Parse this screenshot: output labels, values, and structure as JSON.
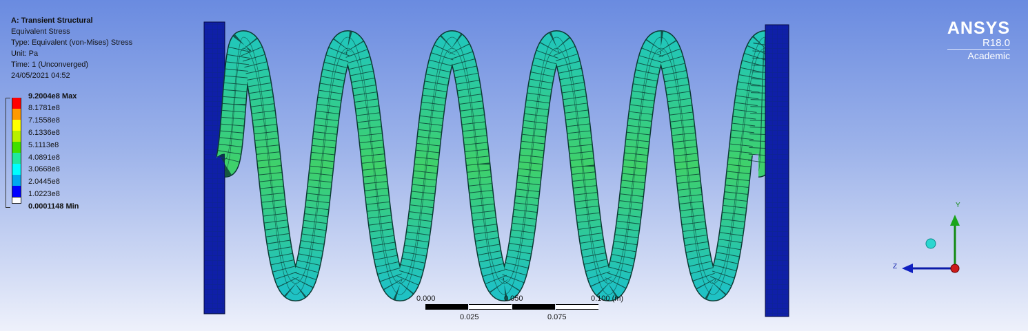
{
  "info": {
    "analysis": "A: Transient Structural",
    "result": "Equivalent Stress",
    "type": "Type: Equivalent (von-Mises) Stress",
    "unit": "Unit: Pa",
    "time": "Time: 1 (Unconverged)",
    "date": "24/05/2021 04:52"
  },
  "legend": {
    "max_label": "9.2004e8 Max",
    "min_label": "0.0001148 Min",
    "levels": [
      "8.1781e8",
      "7.1558e8",
      "6.1336e8",
      "5.1113e8",
      "4.0891e8",
      "3.0668e8",
      "2.0445e8",
      "1.0223e8"
    ],
    "colors": [
      "#ff0000",
      "#ff9900",
      "#ffff00",
      "#b8f000",
      "#40e000",
      "#20e8a0",
      "#00ffff",
      "#00a8f0",
      "#0000ff",
      "#ffffff"
    ]
  },
  "logo": {
    "name": "ANSYS",
    "version": "R18.0",
    "edition": "Academic"
  },
  "scale_bar": {
    "top_labels": [
      "0.000",
      "0.050",
      "0.100 (m)"
    ],
    "bottom_labels": [
      "0.025",
      "0.075"
    ]
  },
  "triad": {
    "y_label": "Y",
    "z_label": "Z"
  },
  "model": {
    "spring_color": "#27c9b0",
    "spring_mid_color": "#3fd16a",
    "plate_color": "#0f1fa8",
    "coils": 6
  }
}
